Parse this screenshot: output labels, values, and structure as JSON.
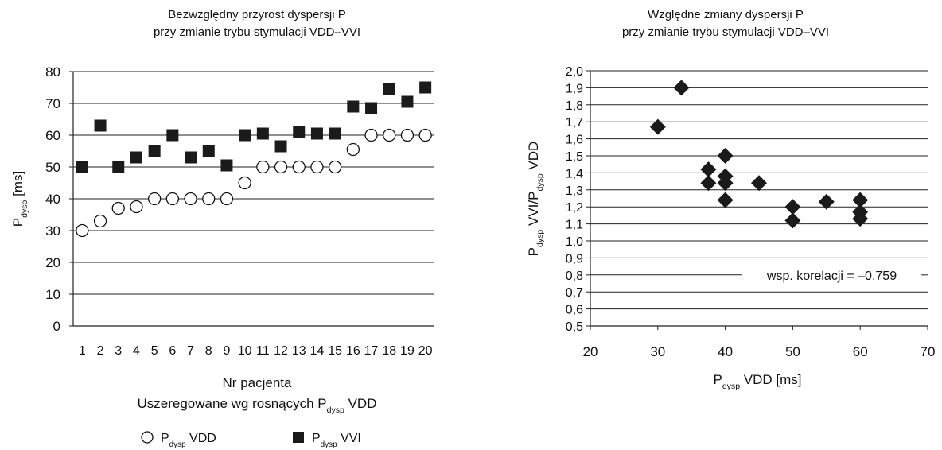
{
  "chart_data": [
    {
      "type": "scatter",
      "title_lines": [
        "Bezwzględny przyrost dyspersji P",
        "przy zmianie trybu stymulacji VDD–VVI"
      ],
      "xlabel_lines": [
        "Nr pacjenta",
        "Uszeregowane wg rosnących P",
        "dysp",
        " VDD"
      ],
      "ylabel": {
        "main": "P",
        "sub": "dysp",
        "rest": " [ms]"
      },
      "ylim": [
        0,
        80
      ],
      "yticks": [
        "0",
        "10",
        "20",
        "30",
        "40",
        "50",
        "60",
        "70",
        "80"
      ],
      "categories": [
        "1",
        "2",
        "3",
        "4",
        "5",
        "6",
        "7",
        "8",
        "9",
        "10",
        "11",
        "12",
        "13",
        "14",
        "15",
        "16",
        "17",
        "18",
        "19",
        "20"
      ],
      "grid": "horizontal",
      "legend_position": "bottom",
      "series": [
        {
          "name_main": "P",
          "name_sub": "dysp",
          "name_rest": " VDD",
          "marker": "open-circle",
          "values": [
            30,
            33,
            37,
            37.5,
            40,
            40,
            40,
            40,
            40,
            45,
            50,
            50,
            50,
            50,
            50,
            55.5,
            60,
            60,
            60,
            60
          ]
        },
        {
          "name_main": "P",
          "name_sub": "dysp",
          "name_rest": " VVI",
          "marker": "filled-square",
          "values": [
            50,
            63,
            50,
            53,
            55,
            60,
            53,
            55,
            50.5,
            60,
            60.5,
            56.5,
            61,
            60.5,
            60.5,
            69,
            68.5,
            74.5,
            70.5,
            75
          ]
        }
      ]
    },
    {
      "type": "scatter",
      "title_lines": [
        "Względne zmiany dyspersji P",
        "przy zmianie trybu stymulacji VDD–VVI"
      ],
      "xlabel": {
        "main": "P",
        "sub": "dysp",
        "rest": " VDD [ms]"
      },
      "ylabel": {
        "p1": "P",
        "s1": "dysp",
        "m": " VVI/P",
        "s2": "dysp",
        "e": " VDD"
      },
      "xlim": [
        20,
        70
      ],
      "xticks": [
        "20",
        "30",
        "40",
        "50",
        "60",
        "70"
      ],
      "ylim": [
        0.5,
        2.0
      ],
      "yticks": [
        "0,5",
        "0,6",
        "0,7",
        "0,8",
        "0,9",
        "1,0",
        "1,1",
        "1,2",
        "1,3",
        "1,4",
        "1,5",
        "1,6",
        "1,7",
        "1,8",
        "1,9",
        "2,0"
      ],
      "grid": "horizontal",
      "annotation": "wsp. korelacji = –0,759",
      "marker": "filled-diamond",
      "points": [
        [
          30,
          1.67
        ],
        [
          33.5,
          1.9
        ],
        [
          37.5,
          1.42
        ],
        [
          37.5,
          1.34
        ],
        [
          40,
          1.5
        ],
        [
          40,
          1.38
        ],
        [
          40,
          1.34
        ],
        [
          40,
          1.24
        ],
        [
          45,
          1.34
        ],
        [
          50,
          1.2
        ],
        [
          50,
          1.12
        ],
        [
          55,
          1.23
        ],
        [
          60,
          1.24
        ],
        [
          60,
          1.17
        ],
        [
          60,
          1.13
        ]
      ]
    }
  ]
}
